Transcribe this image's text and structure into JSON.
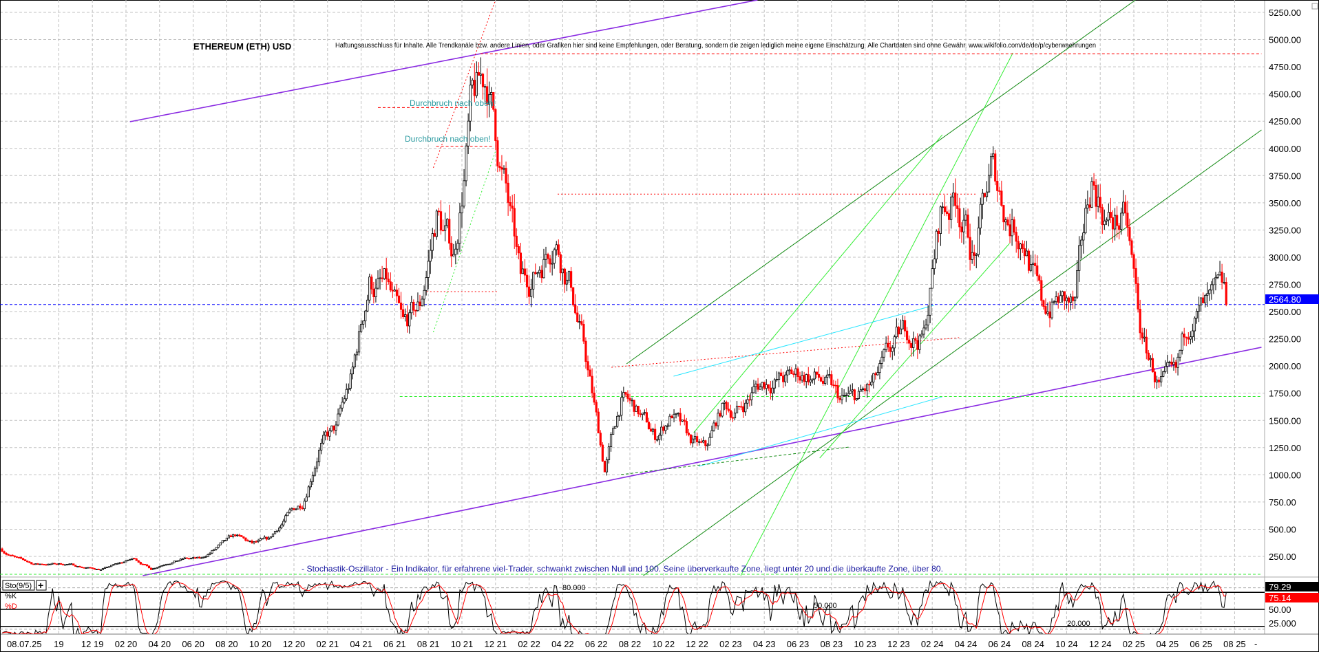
{
  "header": {
    "title": "ETHEREUM (ETH) USD",
    "disclaimer": "Haftungsausschluss für Inhalte. Alle Trendkanäle bzw. andere Linien, oder Grafiken hier sind keine Empfehlungen, oder Beratung, sondern die zeigen lediglich meine eigene Einschätzung. Alle Chartdaten sind ohne Gewähr.  www.wikifolio.com/de/de/p/cyberwaehrungen"
  },
  "annotations": {
    "breakout_1": "Durchbruch nach oben!",
    "breakout_2": "Durchbruch nach oben!",
    "stochastic_note": "- Stochastik-Oszillator - Ein Indikator, für erfahrene viel-Trader, schwankt zwischen Null und 100. Seine überverkaufte Zone, liegt unter 20 und die überkaufte Zone, über 80."
  },
  "colors": {
    "bull": "#000000",
    "bear": "#ff0000",
    "channel": "#8a2be2",
    "trend_dark": "#138a13",
    "trend_light": "#33ee33",
    "cyan": "#22e5ff",
    "current_price": "#0000ff",
    "note_text": "#1a1aa0",
    "breakout_text": "#2a9aa0"
  },
  "chart_data": [
    {
      "type": "candlestick",
      "title": "ETHEREUM (ETH) USD",
      "ylim": [
        0,
        5350
      ],
      "y_ticks": [
        "5250.00",
        "5000.00",
        "4750.00",
        "4500.00",
        "4250.00",
        "4000.00",
        "3750.00",
        "3500.00",
        "3250.00",
        "3000.00",
        "2750.00",
        "2500.00",
        "2250.00",
        "2000.00",
        "1750.00",
        "1500.00",
        "1250.00",
        "1000.00",
        "750.00",
        "500.00",
        "250.00"
      ],
      "current_price": "2564.80",
      "grid": true,
      "monthly_close_approx": {
        "months": [
          "2019-06",
          "2019-07",
          "2019-08",
          "2019-09",
          "2019-10",
          "2019-11",
          "2019-12",
          "2020-01",
          "2020-02",
          "2020-03",
          "2020-04",
          "2020-05",
          "2020-06",
          "2020-07",
          "2020-08",
          "2020-09",
          "2020-10",
          "2020-11",
          "2020-12",
          "2021-01",
          "2021-02",
          "2021-03",
          "2021-04",
          "2021-05",
          "2021-06",
          "2021-07",
          "2021-08",
          "2021-09",
          "2021-10",
          "2021-11",
          "2021-12",
          "2022-01",
          "2022-02",
          "2022-03",
          "2022-04",
          "2022-05",
          "2022-06",
          "2022-07",
          "2022-08",
          "2022-09",
          "2022-10",
          "2022-11",
          "2022-12",
          "2023-01",
          "2023-02",
          "2023-03",
          "2023-04",
          "2023-05",
          "2023-06",
          "2023-07",
          "2023-08",
          "2023-09",
          "2023-10",
          "2023-11",
          "2023-12",
          "2024-01",
          "2024-02",
          "2024-03",
          "2024-04",
          "2024-05",
          "2024-06",
          "2024-07",
          "2024-08",
          "2024-09",
          "2024-10",
          "2024-11",
          "2024-12",
          "2025-01",
          "2025-02",
          "2025-03",
          "2025-04",
          "2025-05",
          "2025-06",
          "2025-07"
        ],
        "values": [
          320,
          230,
          180,
          180,
          180,
          150,
          130,
          180,
          230,
          135,
          200,
          230,
          225,
          340,
          430,
          360,
          390,
          600,
          740,
          1300,
          1400,
          1900,
          2800,
          2700,
          2250,
          2500,
          3400,
          3000,
          4300,
          4600,
          3700,
          2700,
          2900,
          3300,
          2800,
          1950,
          1050,
          1700,
          1550,
          1330,
          1570,
          1300,
          1200,
          1600,
          1600,
          1800,
          1900,
          1870,
          1930,
          1850,
          1650,
          1670,
          1800,
          2050,
          2300,
          2280,
          3400,
          3600,
          3000,
          3750,
          3400,
          3250,
          2500,
          2600,
          2500,
          3700,
          3350,
          3300,
          2200,
          1820,
          1800,
          2530,
          2500,
          2565
        ]
      },
      "trendlines": [
        {
          "kind": "channel",
          "style": "solid",
          "from": [
            "2020-02-08",
            4245
          ],
          "to": [
            "2023-03-19",
            5364
          ]
        },
        {
          "kind": "channel",
          "style": "solid",
          "from": [
            "2020-03-01",
            73
          ],
          "to": [
            "2025-09-19",
            2172
          ]
        },
        {
          "kind": "trend_dark",
          "style": "solid",
          "from": [
            "2022-07-25",
            2020
          ],
          "to": [
            "2025-02-04",
            5364
          ]
        },
        {
          "kind": "trend_dark",
          "style": "solid",
          "from": [
            "2022-08-25",
            73
          ],
          "to": [
            "2025-09-19",
            4169
          ]
        },
        {
          "kind": "trend_light",
          "style": "solid",
          "from": [
            "2023-02-19",
            73
          ],
          "to": [
            "2024-06-25",
            4877
          ]
        },
        {
          "kind": "trend_light",
          "style": "solid",
          "from": [
            "2022-11-25",
            1388
          ],
          "to": [
            "2024-02-19",
            4125
          ]
        },
        {
          "kind": "trend_light",
          "style": "solid",
          "from": [
            "2023-07-10",
            1154
          ],
          "to": [
            "2024-06-19",
            3126
          ]
        },
        {
          "kind": "cyan",
          "style": "solid",
          "from": [
            "2022-10-19",
            1906
          ],
          "to": [
            "2024-02-04",
            2557
          ]
        },
        {
          "kind": "cyan",
          "style": "solid",
          "from": [
            "2022-12-04",
            1078
          ],
          "to": [
            "2024-02-19",
            1717
          ]
        },
        {
          "kind": "trend_light",
          "style": "dotted",
          "from": [
            "2021-08-10",
            2311
          ],
          "to": [
            "2021-12-01",
            3973
          ]
        },
        {
          "kind": "trend_light",
          "style": "dashed",
          "from": [
            "2021-06-10",
            1720
          ],
          "to": [
            "2025-09-19",
            1720
          ]
        },
        {
          "kind": "trend_light",
          "style": "dashed",
          "from": [
            "2019-06-16",
            86
          ],
          "to": [
            "2025-09-19",
            86
          ]
        },
        {
          "kind": "trend_dark",
          "style": "dashed",
          "from": [
            "2022-07-15",
            1002
          ],
          "to": [
            "2023-09-03",
            1255
          ]
        },
        {
          "kind": "bear",
          "style": "dashed",
          "from": [
            "2021-11-04",
            4870
          ],
          "to": [
            "2025-09-19",
            4870
          ]
        },
        {
          "kind": "bear",
          "style": "dotted",
          "from": [
            "2022-03-22",
            3580
          ],
          "to": [
            "2024-04-19",
            3580
          ]
        },
        {
          "kind": "bear",
          "style": "dashed",
          "from": [
            "2021-05-01",
            4375
          ],
          "to": [
            "2021-10-10",
            4375
          ]
        },
        {
          "kind": "bear",
          "style": "dashed",
          "from": [
            "2021-08-15",
            4020
          ],
          "to": [
            "2021-11-25",
            4020
          ]
        },
        {
          "kind": "bear",
          "style": "dotted",
          "from": [
            "2021-07-28",
            2684
          ],
          "to": [
            "2021-12-07",
            2684
          ]
        },
        {
          "kind": "bear",
          "style": "dotted",
          "from": [
            "2022-06-28",
            1988
          ],
          "to": [
            "2024-03-19",
            2260
          ]
        },
        {
          "kind": "bear",
          "style": "dotted",
          "from": [
            "2021-08-10",
            3822
          ],
          "to": [
            "2021-12-01",
            5364
          ]
        }
      ]
    },
    {
      "type": "line",
      "title": "Sto(9/5)",
      "series": [
        {
          "name": "%K",
          "last": "79.29",
          "color": "#000000"
        },
        {
          "name": "%D",
          "last": "75.14",
          "color": "#ff0000"
        }
      ],
      "ylim": [
        0,
        100
      ],
      "levels": [
        "80.000",
        "50.000",
        "20.000"
      ],
      "y_ticks": [
        "50.00",
        "25.000"
      ],
      "x_ticks": [
        {
          "date": "2019-06-16",
          "label": "08.07.25"
        },
        {
          "date": "2019-10-01",
          "label": "19"
        },
        {
          "date": "2019-12-01",
          "label": "12 19"
        },
        {
          "date": "2020-02-01",
          "label": "02 20"
        },
        {
          "date": "2020-04-01",
          "label": "04 20"
        },
        {
          "date": "2020-06-01",
          "label": "06 20"
        },
        {
          "date": "2020-08-01",
          "label": "08 20"
        },
        {
          "date": "2020-10-01",
          "label": "10 20"
        },
        {
          "date": "2020-12-01",
          "label": "12 20"
        },
        {
          "date": "2021-02-01",
          "label": "02 21"
        },
        {
          "date": "2021-04-01",
          "label": "04 21"
        },
        {
          "date": "2021-06-01",
          "label": "06 21"
        },
        {
          "date": "2021-08-01",
          "label": "08 21"
        },
        {
          "date": "2021-10-01",
          "label": "10 21"
        },
        {
          "date": "2021-12-01",
          "label": "12 21"
        },
        {
          "date": "2022-02-01",
          "label": "02 22"
        },
        {
          "date": "2022-04-01",
          "label": "04 22"
        },
        {
          "date": "2022-06-01",
          "label": "06 22"
        },
        {
          "date": "2022-08-01",
          "label": "08 22"
        },
        {
          "date": "2022-10-01",
          "label": "10 22"
        },
        {
          "date": "2022-12-01",
          "label": "12 22"
        },
        {
          "date": "2023-02-01",
          "label": "02 23"
        },
        {
          "date": "2023-04-01",
          "label": "04 23"
        },
        {
          "date": "2023-06-01",
          "label": "06 23"
        },
        {
          "date": "2023-08-01",
          "label": "08 23"
        },
        {
          "date": "2023-10-01",
          "label": "10 23"
        },
        {
          "date": "2023-12-01",
          "label": "12 23"
        },
        {
          "date": "2024-02-01",
          "label": "02 24"
        },
        {
          "date": "2024-04-01",
          "label": "04 24"
        },
        {
          "date": "2024-06-01",
          "label": "06 24"
        },
        {
          "date": "2024-08-01",
          "label": "08 24"
        },
        {
          "date": "2024-10-01",
          "label": "10 24"
        },
        {
          "date": "2024-12-01",
          "label": "12 24"
        },
        {
          "date": "2025-02-01",
          "label": "02 25"
        },
        {
          "date": "2025-04-01",
          "label": "04 25"
        },
        {
          "date": "2025-06-01",
          "label": "06 25"
        },
        {
          "date": "2025-08-01",
          "label": "08 25"
        }
      ]
    }
  ]
}
